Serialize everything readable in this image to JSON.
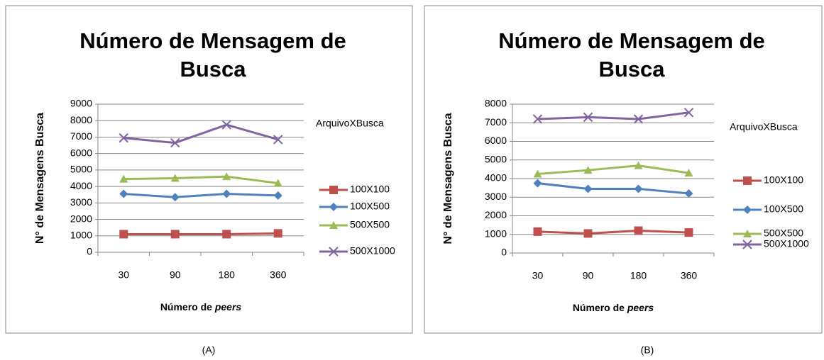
{
  "chart_data": [
    {
      "type": "line",
      "title": [
        "Número de Mensagem de",
        "Busca"
      ],
      "y_label": "N° de Mensagens Busca",
      "x_label": [
        "Número de ",
        "peers"
      ],
      "legend_title": "ArquivoXBusca",
      "caption": "(A)",
      "categories": [
        "30",
        "90",
        "180",
        "360"
      ],
      "ylim": [
        0,
        9000
      ],
      "yticks": [
        0,
        1000,
        2000,
        3000,
        4000,
        5000,
        6000,
        7000,
        8000,
        9000
      ],
      "grid": true,
      "legend": "right",
      "series": [
        {
          "name": "100X100",
          "color": "#c0504d",
          "marker": "square",
          "values": [
            1100,
            1100,
            1100,
            1150
          ]
        },
        {
          "name": "100X500",
          "color": "#4f81bd",
          "marker": "diamond",
          "values": [
            3550,
            3350,
            3550,
            3450
          ]
        },
        {
          "name": "500X500",
          "color": "#9bbb59",
          "marker": "triangle",
          "values": [
            4450,
            4500,
            4600,
            4200
          ]
        },
        {
          "name": "500X1000",
          "color": "#8064a2",
          "marker": "x",
          "values": [
            6950,
            6650,
            7750,
            6850
          ]
        }
      ]
    },
    {
      "type": "line",
      "title": [
        "Número de Mensagem de",
        "Busca"
      ],
      "y_label": "N° de Mensagens Busca",
      "x_label": [
        "Número de ",
        "peers"
      ],
      "legend_title": "ArquivoXBusca",
      "caption": "(B)",
      "categories": [
        "30",
        "90",
        "180",
        "360"
      ],
      "ylim": [
        0,
        8000
      ],
      "yticks": [
        0,
        1000,
        2000,
        3000,
        4000,
        5000,
        6000,
        7000,
        8000
      ],
      "grid": true,
      "legend": "right",
      "series": [
        {
          "name": "100X100",
          "color": "#c0504d",
          "marker": "square",
          "values": [
            1150,
            1050,
            1200,
            1100
          ]
        },
        {
          "name": "100X500",
          "color": "#4f81bd",
          "marker": "diamond",
          "values": [
            3750,
            3450,
            3450,
            3200
          ]
        },
        {
          "name": "500X500",
          "color": "#9bbb59",
          "marker": "triangle",
          "values": [
            4250,
            4450,
            4700,
            4300
          ]
        },
        {
          "name": "500X1000",
          "color": "#8064a2",
          "marker": "x",
          "values": [
            7200,
            7300,
            7200,
            7550
          ]
        }
      ]
    }
  ]
}
